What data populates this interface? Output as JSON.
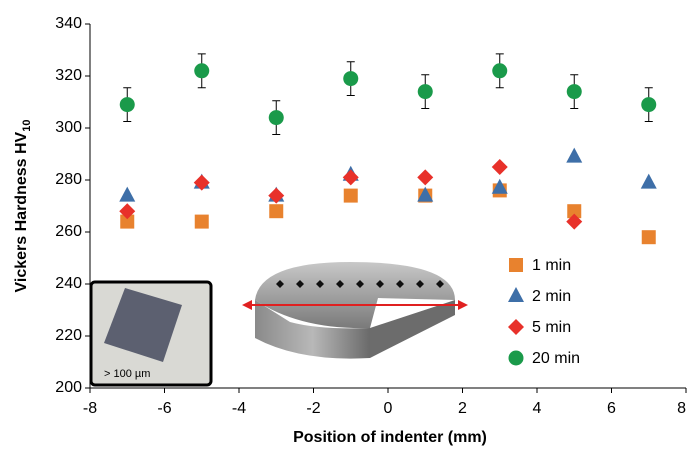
{
  "chart_data": {
    "type": "scatter",
    "xlabel": "Position of indenter (mm)",
    "ylabel": "Vickers Hardness HV",
    "ylabel_subscript": "10",
    "inset_label": "> 100 µm",
    "xlim": [
      -8,
      8
    ],
    "xticks": [
      -8,
      -6,
      -4,
      -2,
      0,
      2,
      4,
      6,
      8
    ],
    "ylim": [
      200,
      340
    ],
    "yticks": [
      200,
      220,
      240,
      260,
      280,
      300,
      320,
      340
    ],
    "series": [
      {
        "name": "1 min",
        "color": "#e8822e",
        "marker": "square",
        "x": [
          -7,
          -5,
          -3,
          -1,
          1,
          3,
          5,
          7
        ],
        "values": [
          264,
          264,
          268,
          274,
          274,
          276,
          268,
          258
        ]
      },
      {
        "name": "2 min",
        "color": "#3e6fa8",
        "marker": "triangle",
        "x": [
          -7,
          -5,
          -3,
          -1,
          1,
          3,
          5,
          7
        ],
        "values": [
          274,
          279,
          274,
          282,
          274,
          277,
          289,
          279
        ]
      },
      {
        "name": "5 min",
        "color": "#e8312a",
        "marker": "diamond",
        "x": [
          -7,
          -5,
          -3,
          -1,
          1,
          3,
          5
        ],
        "values": [
          268,
          279,
          274,
          281,
          281,
          285,
          264
        ]
      },
      {
        "name": "20 min",
        "color": "#1a9a4a",
        "marker": "circle",
        "x": [
          -7,
          -5,
          -3,
          -1,
          1,
          3,
          5,
          7
        ],
        "values": [
          309,
          322,
          304,
          319,
          314,
          322,
          314,
          309
        ],
        "errors": [
          6.5,
          6.5,
          6.5,
          6.5,
          6.5,
          6.5,
          6.5,
          6.5
        ]
      }
    ]
  }
}
